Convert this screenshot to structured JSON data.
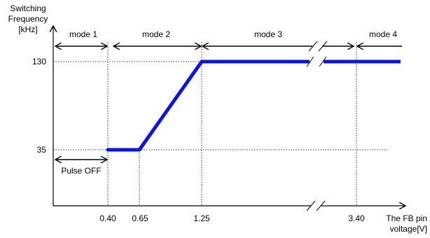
{
  "chart_data": {
    "type": "line",
    "ylabel": [
      "Switching",
      "Frequency",
      "[kHz]"
    ],
    "xlabel": [
      "The FB pin",
      "voltage[V]"
    ],
    "x_ticks": [
      "0.40",
      "0.65",
      "1.25",
      "3.40"
    ],
    "y_ticks": [
      "35",
      "130"
    ],
    "series": [
      {
        "x": [
          0.4,
          0.65,
          1.25,
          3.4
        ],
        "y": [
          35,
          35,
          130,
          130
        ]
      }
    ],
    "modes": [
      {
        "label": "mode 1",
        "from": null,
        "to": 0.4
      },
      {
        "label": "mode 2",
        "from": 0.4,
        "to": 1.25
      },
      {
        "label": "mode 3",
        "from": 1.25,
        "to": null
      },
      {
        "label": "mode 4",
        "from": 3.4,
        "to": null
      }
    ],
    "annotations": [
      {
        "label": "Pulse OFF",
        "from": null,
        "to": 0.4,
        "y": 35
      }
    ],
    "x_axis_break": true,
    "line_color": "#0a14e6"
  }
}
